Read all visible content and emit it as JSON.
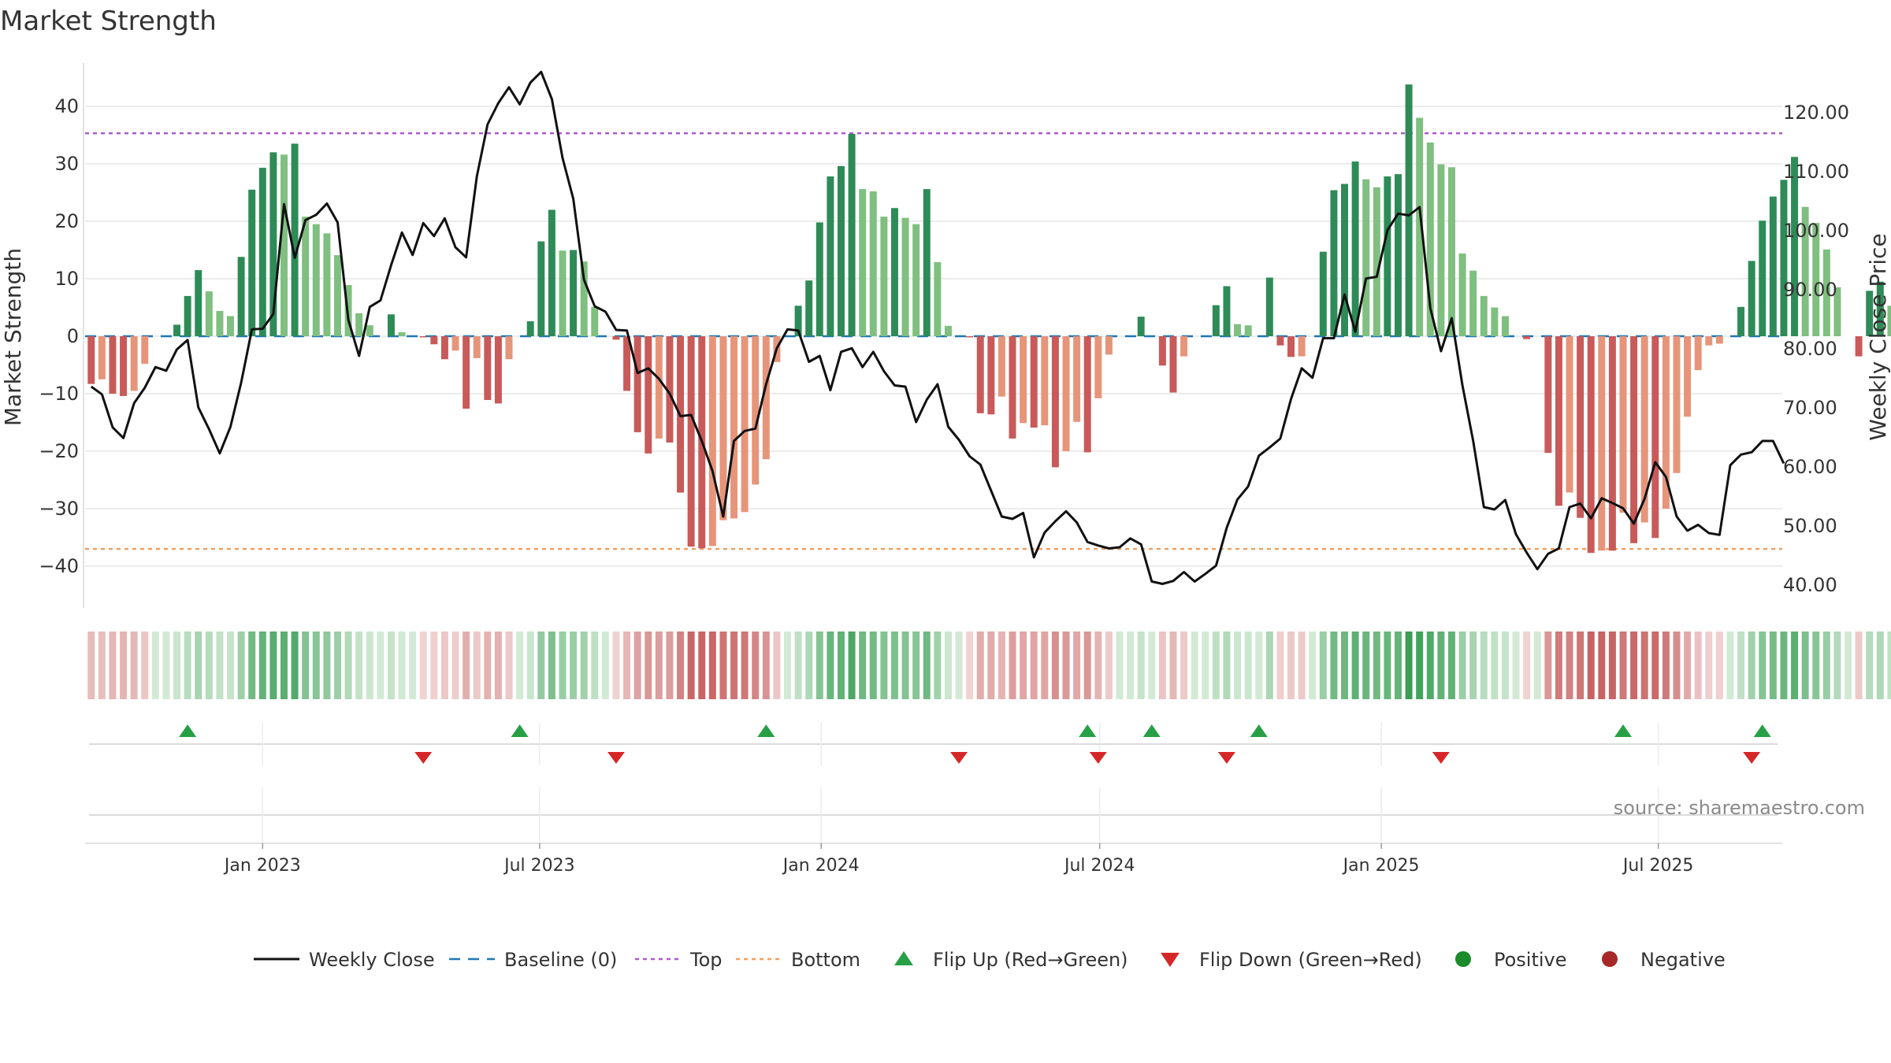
{
  "chart_data": {
    "type": "bar",
    "title": "Market Strength",
    "ylabel": "Market Strength",
    "y2label": "Weekly Close Price",
    "ylim": [
      -47,
      48
    ],
    "y2lim": [
      37.2,
      128.4
    ],
    "yticks": [
      40,
      30,
      20,
      10,
      0,
      -10,
      -20,
      -30,
      -40
    ],
    "y2ticks": [
      "120.00",
      "110.00",
      "100.00",
      "90.00",
      "80.00",
      "70.00",
      "60.00",
      "50.00",
      "40.00"
    ],
    "x_start": "2022-09-11",
    "week_days": 7,
    "x_range": [
      "2022-09-07",
      "2025-09-20"
    ],
    "x_ticks": [
      {
        "date": "2023-01-01",
        "label": "Jan 2023"
      },
      {
        "date": "2023-07-01",
        "label": "Jul 2023"
      },
      {
        "date": "2024-01-01",
        "label": "Jan 2024"
      },
      {
        "date": "2024-07-01",
        "label": "Jul 2024"
      },
      {
        "date": "2025-01-01",
        "label": "Jan 2025"
      },
      {
        "date": "2025-07-01",
        "label": "Jul 2025"
      }
    ],
    "top_line": 35.3,
    "bottom_line": -37,
    "strength": [
      -8.3,
      -7.5,
      -10,
      -10.4,
      -9.5,
      -4.8,
      0,
      0,
      2,
      7,
      11.5,
      7.8,
      4.4,
      3.5,
      13.8,
      25.5,
      29.3,
      32,
      31.6,
      33.5,
      20.8,
      19.5,
      17.9,
      14.1,
      8.9,
      4,
      1.9,
      0,
      3.8,
      0.7,
      0,
      -0.2,
      -1.4,
      -4,
      -2.5,
      -12.6,
      -3.8,
      -11.1,
      -11.7,
      -4,
      0,
      2.6,
      16.5,
      22,
      14.9,
      15,
      13,
      5.1,
      0,
      -0.6,
      -9.5,
      -16.7,
      -20.4,
      -17.8,
      -18.5,
      -27.2,
      -36.6,
      -36.9,
      -36.5,
      -32,
      -31.7,
      -30.6,
      -25.8,
      -21.4,
      -4.5,
      0,
      5.3,
      9.7,
      19.8,
      27.8,
      29.6,
      35.2,
      25.6,
      25.2,
      20.8,
      22.3,
      20.6,
      19.5,
      25.6,
      12.9,
      1.8,
      0,
      -0.2,
      -13.4,
      -13.6,
      -10.5,
      -17.8,
      -15.1,
      -15.9,
      -15.5,
      -22.8,
      -20,
      -14.9,
      -20.2,
      -10.8,
      -3.2,
      0,
      0,
      3.4,
      0,
      -5.1,
      -9.8,
      -3.5,
      0,
      0,
      5.4,
      8.7,
      2.1,
      1.9,
      0,
      10.2,
      -1.6,
      -3.6,
      -3.5,
      0,
      14.7,
      25.4,
      26.5,
      30.4,
      27.3,
      25.9,
      27.8,
      28.2,
      43.8,
      38,
      33.7,
      29.9,
      29.4,
      14.4,
      11.4,
      7,
      5,
      3.5,
      0,
      -0.5,
      0,
      -20.3,
      -29.5,
      -27.2,
      -31.6,
      -37.7,
      -37.3,
      -37.3,
      -30.7,
      -36,
      -32.4,
      -35.1,
      -30,
      -23.8,
      -14,
      -5.9,
      -1.6,
      -1.3,
      0,
      5.1,
      13.1,
      20.1,
      24.3,
      27.2,
      31.2,
      22.5,
      19.7,
      15.1,
      8.5,
      0,
      -3.5,
      7.9,
      9.5,
      5.3,
      5.9,
      5.9,
      3.4
    ],
    "close": [
      73.6,
      72.3,
      66.7,
      64.9,
      70.8,
      73.4,
      76.9,
      76.3,
      79.9,
      81.5,
      70.1,
      66.4,
      62.3,
      66.8,
      74.3,
      83.3,
      83.4,
      85.9,
      104.5,
      95.4,
      101.8,
      102.7,
      104.6,
      101.4,
      84.9,
      78.8,
      87.1,
      88.2,
      94.2,
      99.7,
      95.9,
      101.3,
      99.1,
      102.1,
      97.2,
      95.5,
      109.2,
      118,
      121.6,
      124.3,
      121.4,
      125.1,
      126.9,
      122.3,
      112.3,
      105.4,
      91.7,
      87.2,
      86.3,
      83.2,
      83.1,
      75.9,
      76.7,
      74.9,
      72.4,
      68.6,
      68.8,
      64.4,
      59.3,
      51.6,
      64.4,
      66.1,
      66.5,
      74,
      80.1,
      83.3,
      83.1,
      77.8,
      78.8,
      73,
      79.5,
      80.1,
      76.9,
      79.5,
      76.2,
      73.8,
      73.6,
      67.6,
      71.4,
      74,
      66.8,
      64.6,
      61.8,
      60.4,
      56,
      51.6,
      51.2,
      52.2,
      44.7,
      48.9,
      50.8,
      52.5,
      50.6,
      47.3,
      46.7,
      46.2,
      46.4,
      47.9,
      46.9,
      40.6,
      40.2,
      40.7,
      42.2,
      40.6,
      41.9,
      43.3,
      49.7,
      54.5,
      56.7,
      61.9,
      63.3,
      64.8,
      71.5,
      76.7,
      75.1,
      81.8,
      81.8,
      89.2,
      82.9,
      91.9,
      92.2,
      100.1,
      102.9,
      102.6,
      104,
      86.9,
      79.6,
      85.2,
      73.8,
      64.4,
      53.2,
      52.8,
      54.4,
      48.6,
      45.5,
      42.7,
      45.3,
      46.2,
      53.2,
      53.8,
      51.3,
      54.7,
      53.9,
      53,
      50.4,
      54.6,
      60.8,
      58.3,
      51.6,
      49.2,
      50.2,
      48.8,
      48.5,
      60.3,
      62.1,
      62.5,
      64.4,
      64.4,
      60.6
    ],
    "flips_up": [
      "2022-11-13",
      "2023-06-18",
      "2023-11-26",
      "2024-06-23",
      "2024-08-04",
      "2024-10-13",
      "2025-06-08",
      "2025-09-07"
    ],
    "flips_down": [
      "2023-04-16",
      "2023-08-20",
      "2024-03-31",
      "2024-06-30",
      "2024-09-22",
      "2025-02-09",
      "2025-08-31"
    ],
    "colors": {
      "pos_strong": "#2e8b57",
      "pos_weak": "#7fbf7f",
      "neg_strong": "#c85a5a",
      "neg_weak": "#e6957a",
      "close_line": "#111111",
      "baseline": "#1f77b4",
      "top": "#b05ad0",
      "bottom": "#f0a060",
      "flip_up": "#27a045",
      "flip_down": "#d62728",
      "positive": "#1a8a2a",
      "negative": "#a82828",
      "grid": "#e6e6e6"
    },
    "legend": [
      {
        "key": "line",
        "label": "Weekly Close"
      },
      {
        "key": "baseline",
        "label": "Baseline (0)"
      },
      {
        "key": "top",
        "label": "Top"
      },
      {
        "key": "bottom",
        "label": "Bottom"
      },
      {
        "key": "flipup",
        "label": "Flip Up (Red→Green)"
      },
      {
        "key": "flipdown",
        "label": "Flip Down (Green→Red)"
      },
      {
        "key": "positive",
        "label": "Positive"
      },
      {
        "key": "negative",
        "label": "Negative"
      }
    ],
    "source": "source: sharemaestro.com"
  }
}
